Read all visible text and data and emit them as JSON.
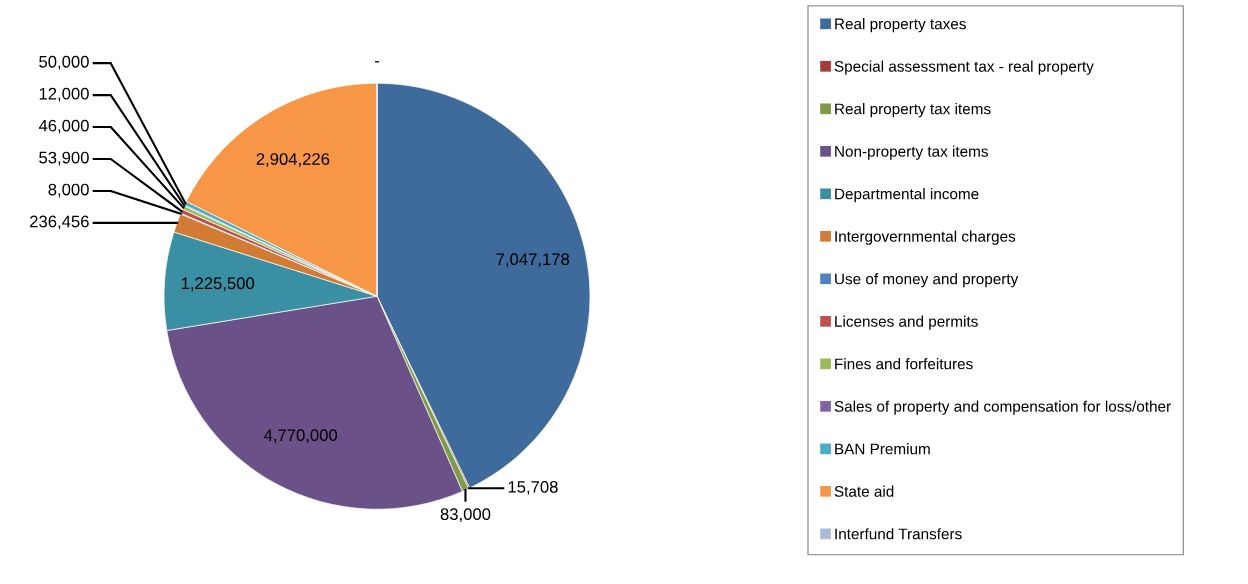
{
  "chart_data": {
    "type": "pie",
    "categories": [
      "Real property taxes",
      "Special assessment tax - real property",
      "Real property tax items",
      "Non-property tax items",
      "Departmental income",
      "Intergovernmental charges",
      "Use of money and property",
      "Licenses and permits",
      "Fines and forfeitures",
      "Sales of property and compensation for loss/other",
      "BAN Premium",
      "State aid",
      "Interfund Transfers"
    ],
    "values": [
      7047178,
      15708,
      83000,
      4770000,
      1225500,
      236456,
      8000,
      53900,
      46000,
      12000,
      50000,
      2904226,
      0
    ],
    "value_labels": [
      "7,047,178",
      "15,708",
      "83,000",
      "4,770,000",
      "1,225,500",
      "236,456",
      "8,000",
      "53,900",
      "46,000",
      "12,000",
      "50,000",
      "2,904,226",
      "-"
    ],
    "colors": [
      "#3f6a9c",
      "#a33b38",
      "#7f9a48",
      "#6a5289",
      "#3a8fa3",
      "#d27b35",
      "#4f81bd",
      "#c0504d",
      "#9bbb59",
      "#8064a2",
      "#4bacc6",
      "#f79646",
      "#a9bcd9"
    ],
    "legend": "right"
  }
}
